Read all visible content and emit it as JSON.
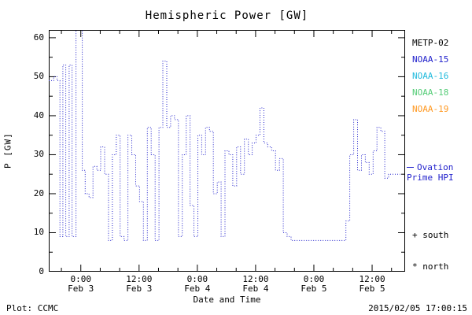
{
  "title": "Hemispheric Power [GW]",
  "footer": {
    "left": "Plot: CCMC",
    "right": "2015/02/05 17:00:15"
  },
  "legend": {
    "satellites": [
      {
        "label": "METP-02",
        "color": "#000000"
      },
      {
        "label": "NOAA-15",
        "color": "#2222cc"
      },
      {
        "label": "NOAA-16",
        "color": "#22bbdd"
      },
      {
        "label": "NOAA-18",
        "color": "#55cc77"
      },
      {
        "label": "NOAA-19",
        "color": "#ff9922"
      }
    ],
    "series_note": {
      "line1": "Ovation",
      "line2": "Prime HPI",
      "color": "#2222cc"
    },
    "markers": [
      {
        "symbol": "+",
        "label": "south"
      },
      {
        "symbol": "*",
        "label": "north"
      }
    ]
  },
  "chart_data": {
    "type": "line",
    "title": "Hemispheric Power [GW]",
    "xlabel": "Date and Time",
    "ylabel": "P [GW]",
    "ylim": [
      0,
      62
    ],
    "yticks": [
      0,
      10,
      20,
      30,
      40,
      50,
      60
    ],
    "x_unit": "hours since 2015-02-03 00:00",
    "xlim": [
      -6.6,
      66.8
    ],
    "xticks": [
      {
        "x": 0,
        "time": "0:00",
        "date": "Feb 3"
      },
      {
        "x": 12,
        "time": "12:00",
        "date": "Feb 3"
      },
      {
        "x": 24,
        "time": "0:00",
        "date": "Feb 4"
      },
      {
        "x": 36,
        "time": "12:00",
        "date": "Feb 4"
      },
      {
        "x": 48,
        "time": "0:00",
        "date": "Feb 5"
      },
      {
        "x": 60,
        "time": "12:00",
        "date": "Feb 5"
      }
    ],
    "grid": false,
    "line_color": "#2222cc",
    "line_style": "dotted-step",
    "series": [
      {
        "name": "Ovation Prime HPI",
        "points": [
          [
            -6.6,
            49
          ],
          [
            -5.6,
            50
          ],
          [
            -4.9,
            49
          ],
          [
            -4.3,
            9
          ],
          [
            -3.7,
            53
          ],
          [
            -3.1,
            9
          ],
          [
            -2.4,
            53
          ],
          [
            -1.8,
            9
          ],
          [
            -1.0,
            63
          ],
          [
            -0.3,
            63
          ],
          [
            0.3,
            26
          ],
          [
            0.9,
            20
          ],
          [
            1.7,
            19
          ],
          [
            2.5,
            27
          ],
          [
            3.3,
            26
          ],
          [
            4.1,
            32
          ],
          [
            4.9,
            25
          ],
          [
            5.7,
            8
          ],
          [
            6.5,
            30
          ],
          [
            7.3,
            35
          ],
          [
            8.1,
            9
          ],
          [
            8.9,
            8
          ],
          [
            9.7,
            35
          ],
          [
            10.5,
            30
          ],
          [
            11.3,
            22
          ],
          [
            12.1,
            18
          ],
          [
            12.9,
            8
          ],
          [
            13.7,
            37
          ],
          [
            14.5,
            30
          ],
          [
            15.3,
            8
          ],
          [
            16.1,
            37
          ],
          [
            16.9,
            54
          ],
          [
            17.7,
            37
          ],
          [
            18.5,
            40
          ],
          [
            19.3,
            39
          ],
          [
            20.1,
            9
          ],
          [
            20.9,
            30
          ],
          [
            21.7,
            40
          ],
          [
            22.5,
            17
          ],
          [
            23.3,
            9
          ],
          [
            24.1,
            35
          ],
          [
            24.9,
            30
          ],
          [
            25.7,
            37
          ],
          [
            26.5,
            36
          ],
          [
            27.3,
            20
          ],
          [
            28.1,
            23
          ],
          [
            28.9,
            9
          ],
          [
            29.7,
            31
          ],
          [
            30.5,
            30
          ],
          [
            31.3,
            22
          ],
          [
            32.1,
            32
          ],
          [
            32.9,
            25
          ],
          [
            33.7,
            34
          ],
          [
            34.5,
            30
          ],
          [
            35.3,
            33
          ],
          [
            36.1,
            35
          ],
          [
            36.9,
            42
          ],
          [
            37.7,
            33
          ],
          [
            38.5,
            32
          ],
          [
            39.3,
            31
          ],
          [
            40.1,
            26
          ],
          [
            40.9,
            29
          ],
          [
            41.7,
            10
          ],
          [
            42.5,
            9
          ],
          [
            43.3,
            8
          ],
          [
            47.0,
            8
          ],
          [
            50.0,
            8
          ],
          [
            53.0,
            8
          ],
          [
            54.6,
            13
          ],
          [
            55.4,
            30
          ],
          [
            56.2,
            39
          ],
          [
            57.0,
            26
          ],
          [
            57.8,
            30
          ],
          [
            58.6,
            28
          ],
          [
            59.4,
            25
          ],
          [
            60.2,
            31
          ],
          [
            61.0,
            37
          ],
          [
            61.8,
            36
          ],
          [
            62.6,
            24
          ],
          [
            63.4,
            25
          ],
          [
            65.8,
            25
          ]
        ]
      }
    ]
  }
}
